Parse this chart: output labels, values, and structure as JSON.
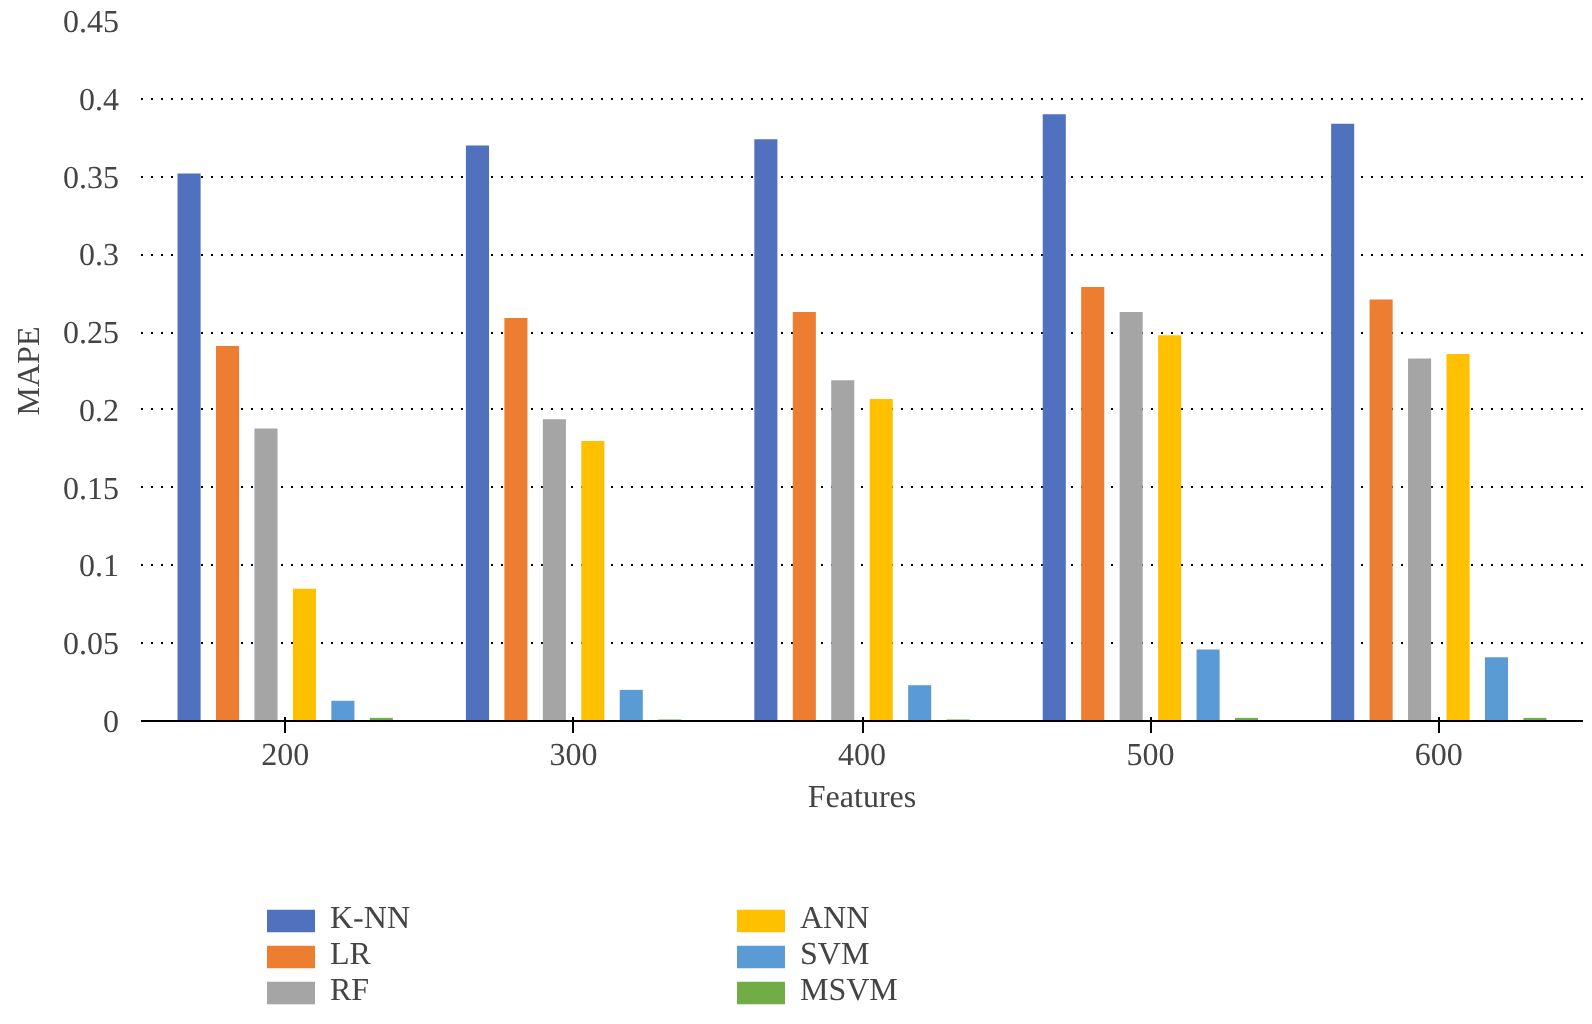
{
  "chart_data": {
    "type": "bar",
    "xlabel": "Features",
    "ylabel": "MAPE",
    "categories": [
      "200",
      "300",
      "400",
      "500",
      "600"
    ],
    "series": [
      {
        "name": "K-NN",
        "color": "#4f71be",
        "values": [
          0.352,
          0.37,
          0.374,
          0.39,
          0.384
        ]
      },
      {
        "name": "LR",
        "color": "#ed7d31",
        "values": [
          0.241,
          0.259,
          0.263,
          0.279,
          0.271
        ]
      },
      {
        "name": "RF",
        "color": "#a5a5a5",
        "values": [
          0.188,
          0.194,
          0.219,
          0.263,
          0.233
        ]
      },
      {
        "name": "ANN",
        "color": "#ffc000",
        "values": [
          0.085,
          0.18,
          0.207,
          0.248,
          0.236
        ]
      },
      {
        "name": "SVM",
        "color": "#5b9bd5",
        "values": [
          0.013,
          0.02,
          0.023,
          0.046,
          0.041
        ]
      },
      {
        "name": "MSVM",
        "color": "#70ad47",
        "values": [
          0.002,
          0.001,
          0.001,
          0.002,
          0.002
        ]
      }
    ],
    "ylim": [
      0,
      0.45
    ],
    "yticks": [
      0,
      0.05,
      0.1,
      0.15,
      0.2,
      0.25,
      0.3,
      0.35,
      0.4,
      0.45
    ],
    "grid": "y",
    "legend": "bottom"
  }
}
